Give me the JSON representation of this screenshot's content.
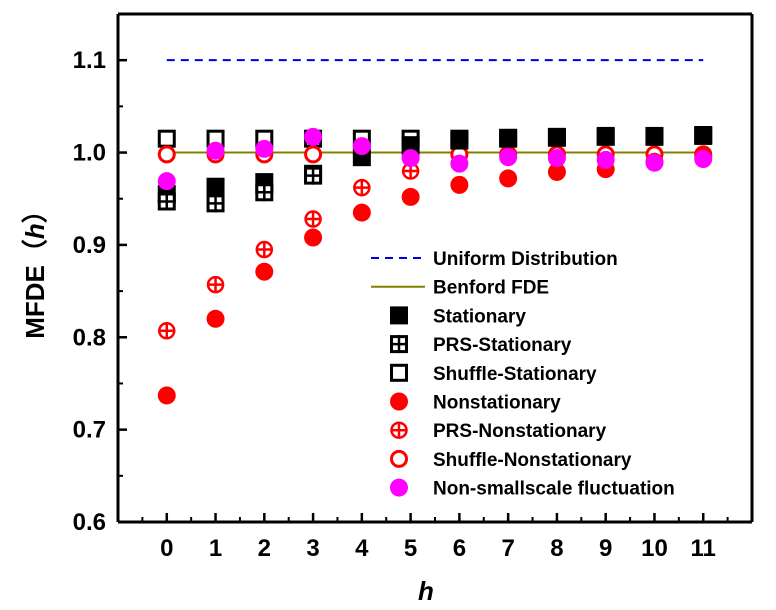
{
  "chart_data": {
    "type": "scatter",
    "xlabel": "h",
    "ylabel_main": "MFDE",
    "ylabel_paren_open": "（",
    "ylabel_var": "h",
    "ylabel_paren_close": "）",
    "xlim": [
      -1,
      12
    ],
    "ylim": [
      0.6,
      1.15
    ],
    "x_ticks": [
      0,
      1,
      2,
      3,
      4,
      5,
      6,
      7,
      8,
      9,
      10,
      11
    ],
    "y_ticks": [
      0.6,
      0.7,
      0.8,
      0.9,
      1.0,
      1.1
    ],
    "y_tick_labels": [
      "0.6",
      "0.7",
      "0.8",
      "0.9",
      "1.0",
      "1.1"
    ],
    "grid": false,
    "legend_position": "center-right",
    "reference_lines": [
      {
        "name": "Uniform Distribution",
        "y": 1.1,
        "x_range": [
          0,
          11
        ],
        "style": "dashed",
        "color": "#0000dd"
      },
      {
        "name": "Benford FDE",
        "y": 1.0,
        "x_range": [
          0,
          11
        ],
        "style": "solid",
        "color": "#808000"
      }
    ],
    "series": [
      {
        "name": "Stationary",
        "marker": "filled-square",
        "color": "#000000",
        "x": [
          0,
          1,
          2,
          3,
          4,
          5,
          6,
          7,
          8,
          9,
          10,
          11
        ],
        "values": [
          0.955,
          0.963,
          0.968,
          0.977,
          0.995,
          1.008,
          1.013,
          1.015,
          1.016,
          1.017,
          1.017,
          1.018
        ]
      },
      {
        "name": "PRS-Stationary",
        "marker": "crossed-square",
        "color": "#000000",
        "x": [
          0,
          1,
          2,
          3
        ],
        "values": [
          0.947,
          0.945,
          0.957,
          0.975
        ]
      },
      {
        "name": "Shuffle-Stationary",
        "marker": "open-square",
        "color": "#000000",
        "x": [
          0,
          1,
          2,
          3,
          4,
          5,
          6,
          7,
          8,
          9,
          10,
          11
        ],
        "values": [
          1.015,
          1.015,
          1.015,
          1.015,
          1.015,
          1.015,
          1.015,
          1.016,
          1.017,
          1.018,
          1.018,
          1.019
        ]
      },
      {
        "name": "Nonstationary",
        "marker": "filled-circle",
        "color": "#ff0000",
        "x": [
          0,
          1,
          2,
          3,
          4,
          5,
          6,
          7,
          8,
          9,
          10,
          11
        ],
        "values": [
          0.737,
          0.82,
          0.871,
          0.908,
          0.935,
          0.952,
          0.965,
          0.972,
          0.979,
          0.982,
          0.99,
          0.996
        ]
      },
      {
        "name": "PRS-Nonstationary",
        "marker": "crossed-circle",
        "color": "#ff0000",
        "x": [
          0,
          1,
          2,
          3,
          4,
          5
        ],
        "values": [
          0.807,
          0.857,
          0.895,
          0.928,
          0.962,
          0.98
        ]
      },
      {
        "name": "Shuffle-Nonstationary",
        "marker": "open-circle",
        "color": "#ff0000",
        "x": [
          0,
          1,
          2,
          3,
          4,
          5,
          6,
          7,
          8,
          9,
          10,
          11
        ],
        "values": [
          0.998,
          0.998,
          0.998,
          0.998,
          0.998,
          0.998,
          0.998,
          0.998,
          0.998,
          0.998,
          0.998,
          0.998
        ]
      },
      {
        "name": "Non-smallscale fluctuation",
        "marker": "filled-circle",
        "color": "#ff00ff",
        "x": [
          0,
          1,
          2,
          3,
          4,
          5,
          6,
          7,
          8,
          9,
          10,
          11
        ],
        "values": [
          0.969,
          1.002,
          1.004,
          1.017,
          1.007,
          0.994,
          0.988,
          0.995,
          0.994,
          0.992,
          0.989,
          0.993
        ]
      }
    ]
  }
}
